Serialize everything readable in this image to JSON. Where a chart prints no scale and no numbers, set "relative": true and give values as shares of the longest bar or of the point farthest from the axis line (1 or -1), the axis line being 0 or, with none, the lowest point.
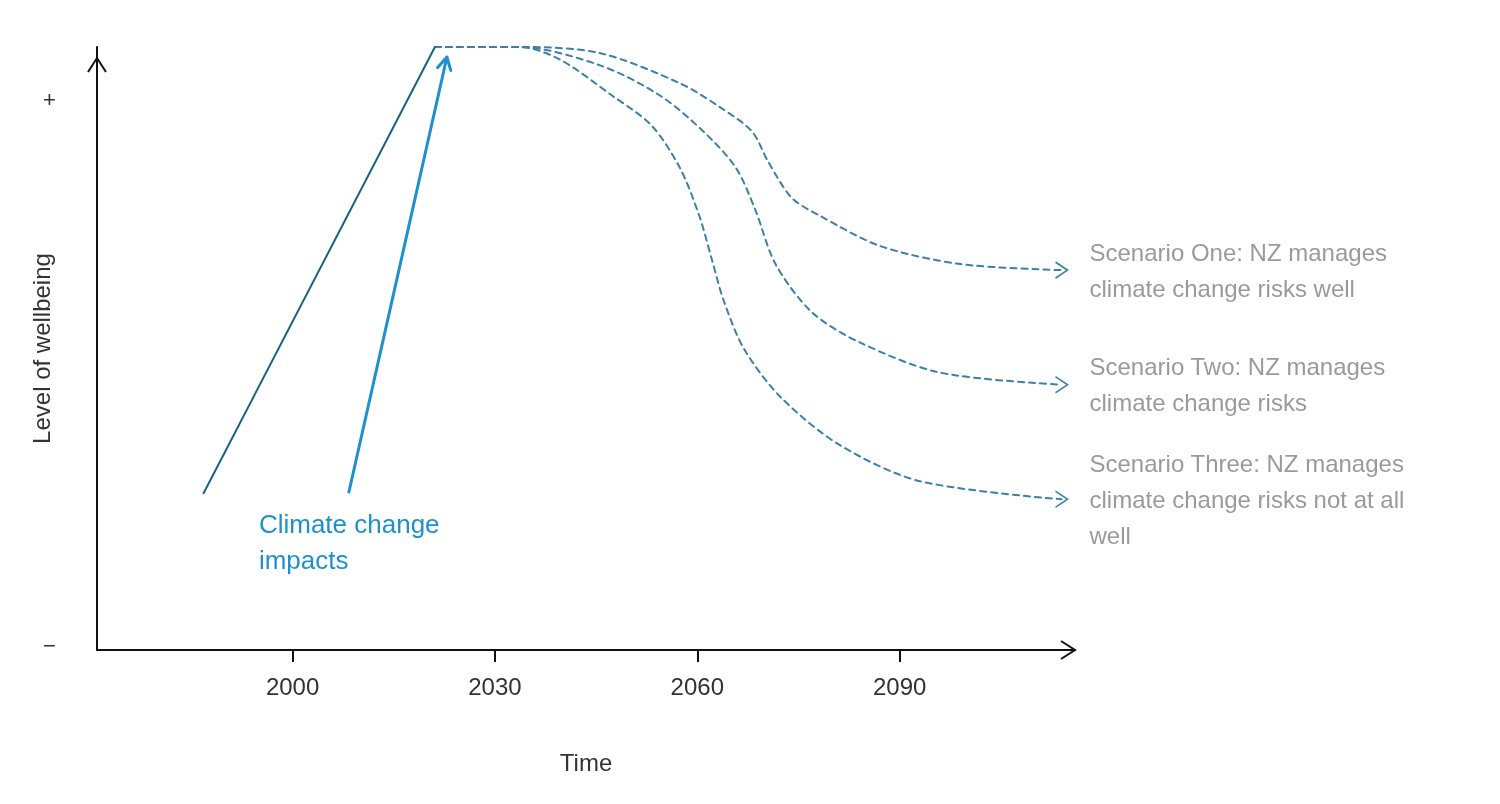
{
  "chart_data": {
    "type": "line",
    "xlabel": "Time",
    "ylabel": "Level of wellbeing",
    "relative": true,
    "marker": "none",
    "xlim": [
      1971,
      2116
    ],
    "xticks": [
      2000,
      2030,
      2060,
      2090
    ],
    "series": [
      {
        "color": "#1a6283",
        "line_style": "solid",
        "x": [
          1986.8,
          2021.1
        ],
        "values": [
          0.26,
          1
        ]
      },
      {
        "name": "Scenario One: NZ manages climate change risks well",
        "color": "#3d80a6",
        "line_style": "dashed",
        "x": [
          2021.1,
          2033.6,
          2045.5,
          2057.4,
          2063.4,
          2068.1,
          2070.5,
          2074,
          2078.2,
          2087.1,
          2099,
          2114
        ],
        "values": [
          1,
          1,
          0.99,
          0.94,
          0.9,
          0.86,
          0.81,
          0.75,
          0.72,
          0.67,
          0.64,
          0.63
        ]
      },
      {
        "name": "Scenario Two: NZ manages climate change risks",
        "color": "#3d80a6",
        "line_style": "dashed",
        "x": [
          2021.1,
          2033.6,
          2045.5,
          2054.4,
          2060.9,
          2065.7,
          2068.6,
          2071.6,
          2077,
          2084.1,
          2096,
          2114
        ],
        "values": [
          1,
          1,
          0.97,
          0.92,
          0.86,
          0.8,
          0.73,
          0.64,
          0.56,
          0.51,
          0.46,
          0.44
        ]
      },
      {
        "name": "Scenario Three: NZ manages climate change risks not at all well",
        "color": "#3d80a6",
        "line_style": "dashed",
        "x": [
          2021.1,
          2033.6,
          2039.5,
          2047.3,
          2053.2,
          2057.4,
          2060.3,
          2062.1,
          2063.9,
          2066.9,
          2072.3,
          2081.1,
          2093,
          2114
        ],
        "values": [
          1,
          1,
          0.98,
          0.92,
          0.87,
          0.8,
          0.72,
          0.65,
          0.58,
          0.5,
          0.42,
          0.34,
          0.28,
          0.25
        ]
      }
    ],
    "annotations": [
      "+",
      "−",
      "Climate change impacts"
    ]
  }
}
